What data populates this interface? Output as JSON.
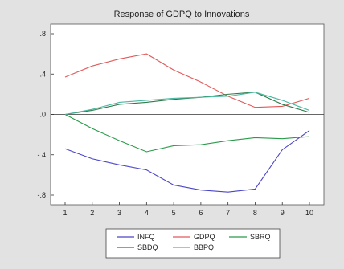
{
  "chart_data": {
    "type": "line",
    "title": "Response of GDPQ to Innovations",
    "x": [
      1,
      2,
      3,
      4,
      5,
      6,
      7,
      8,
      9,
      10
    ],
    "xticks": [
      "1",
      "2",
      "3",
      "4",
      "5",
      "6",
      "7",
      "8",
      "9",
      "10"
    ],
    "ylim": [
      -0.8,
      0.8
    ],
    "yticks": [
      0.8,
      0.4,
      0.0,
      -0.4,
      -0.8
    ],
    "ytick_labels": [
      ".8",
      ".4",
      ".0",
      "-.4",
      "-.8"
    ],
    "grid": false,
    "zero_line": true,
    "legend_position": "bottom",
    "series": [
      {
        "name": "INFQ",
        "color": "#4a46c8",
        "values": [
          -0.34,
          -0.44,
          -0.5,
          -0.55,
          -0.7,
          -0.75,
          -0.77,
          -0.74,
          -0.35,
          -0.16
        ]
      },
      {
        "name": "GDPQ",
        "color": "#e05a5a",
        "values": [
          0.37,
          0.48,
          0.55,
          0.6,
          0.44,
          0.32,
          0.18,
          0.07,
          0.08,
          0.16
        ]
      },
      {
        "name": "SBRQ",
        "color": "#2a9a4a",
        "values": [
          0.0,
          -0.14,
          -0.26,
          -0.37,
          -0.31,
          -0.3,
          -0.26,
          -0.23,
          -0.24,
          -0.22
        ]
      },
      {
        "name": "SBDQ",
        "color": "#2f7a4a",
        "values": [
          0.0,
          0.04,
          0.1,
          0.12,
          0.15,
          0.17,
          0.2,
          0.22,
          0.1,
          0.02
        ]
      },
      {
        "name": "BBPQ",
        "color": "#49b8a0",
        "values": [
          0.0,
          0.05,
          0.12,
          0.14,
          0.16,
          0.17,
          0.18,
          0.22,
          0.14,
          0.04
        ]
      }
    ]
  }
}
